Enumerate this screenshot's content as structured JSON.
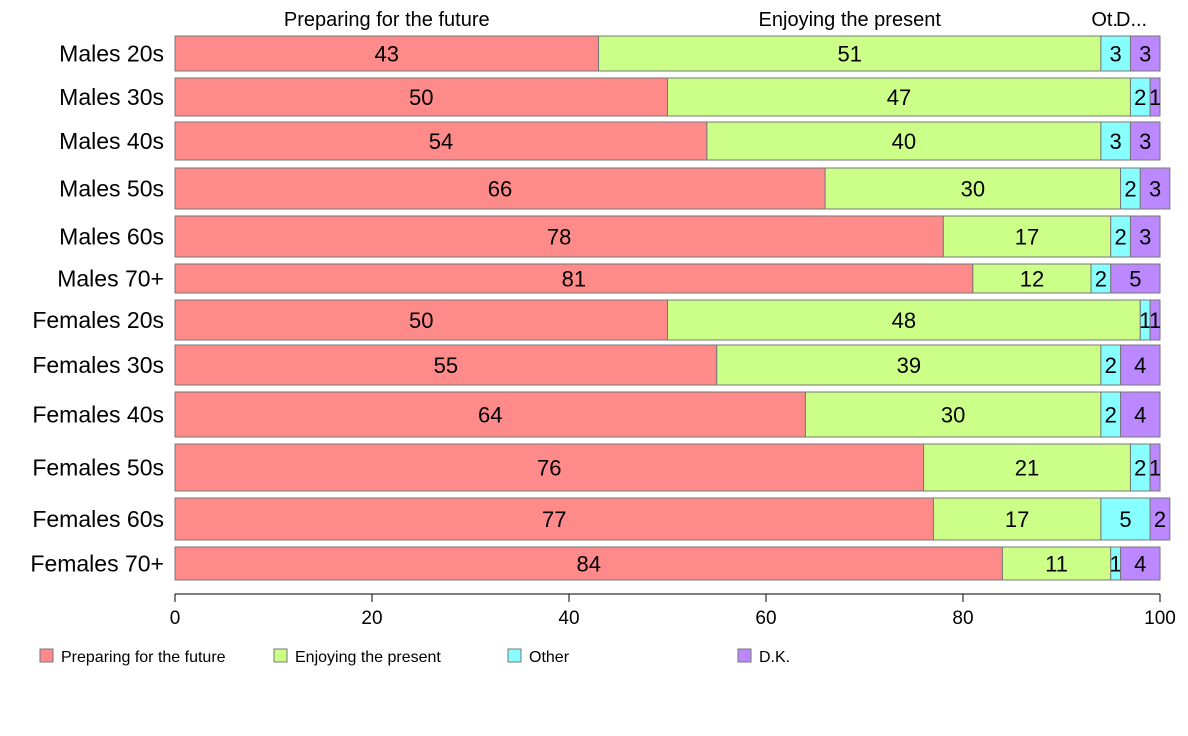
{
  "chart_data": {
    "type": "bar",
    "orientation": "horizontal",
    "stacked": true,
    "categories": [
      "Males 20s",
      "Males 30s",
      "Males 40s",
      "Males 50s",
      "Males 60s",
      "Males 70+",
      "Females 20s",
      "Females 30s",
      "Females 40s",
      "Females 50s",
      "Females 60s",
      "Females 70+"
    ],
    "series": [
      {
        "name": "Preparing for the future",
        "color": "#ff8a8a",
        "values": [
          43,
          50,
          54,
          66,
          78,
          81,
          50,
          55,
          64,
          76,
          77,
          84
        ]
      },
      {
        "name": "Enjoying the present",
        "color": "#ccff88",
        "values": [
          51,
          47,
          40,
          30,
          17,
          12,
          48,
          39,
          30,
          21,
          17,
          11
        ]
      },
      {
        "name": "Other",
        "color": "#88ffff",
        "values": [
          3,
          2,
          3,
          2,
          2,
          2,
          1,
          2,
          2,
          2,
          5,
          1
        ]
      },
      {
        "name": "D.K.",
        "color": "#bb88ff",
        "values": [
          3,
          1,
          3,
          3,
          3,
          5,
          1,
          4,
          4,
          1,
          2,
          4
        ]
      }
    ],
    "top_labels": [
      "Preparing for the future",
      "Enjoying the present",
      "Ot.",
      "D..."
    ],
    "xlim": [
      0,
      100
    ],
    "xticks": [
      0,
      20,
      40,
      60,
      80,
      100
    ],
    "xlabel": "",
    "ylabel": "",
    "title": "",
    "legend_position": "bottom",
    "grid": false
  }
}
